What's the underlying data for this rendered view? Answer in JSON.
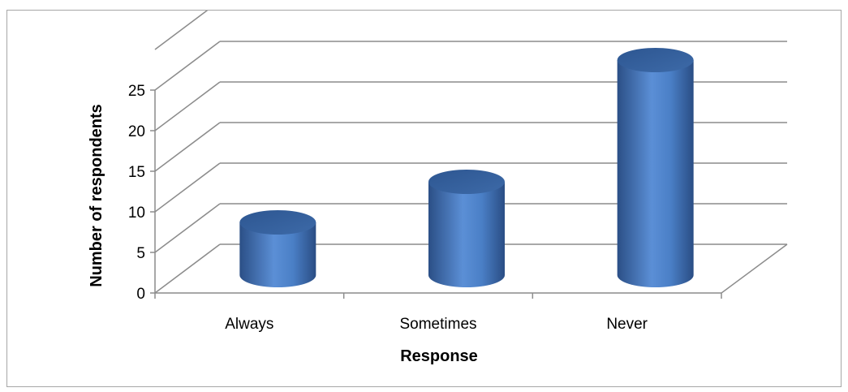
{
  "chart_data": {
    "type": "bar",
    "style": "3d-cylinder",
    "categories": [
      "Always",
      "Sometimes",
      "Never"
    ],
    "values": [
      5,
      10,
      25
    ],
    "xlabel": "Response",
    "ylabel": "Number of respondents",
    "ylim": [
      0,
      25
    ],
    "yticks": [
      "0",
      "5",
      "10",
      "15",
      "20",
      "25"
    ],
    "grid": true,
    "legend": "none",
    "bar_color": "#4f81bd"
  }
}
